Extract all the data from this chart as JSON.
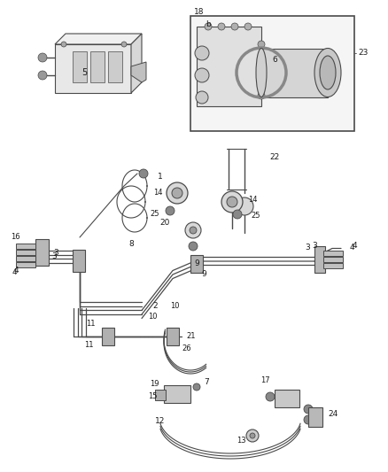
{
  "bg_color": "#ffffff",
  "line_color": "#4a4a4a",
  "label_color": "#1a1a1a",
  "fig_width": 4.38,
  "fig_height": 5.33,
  "dpi": 100
}
